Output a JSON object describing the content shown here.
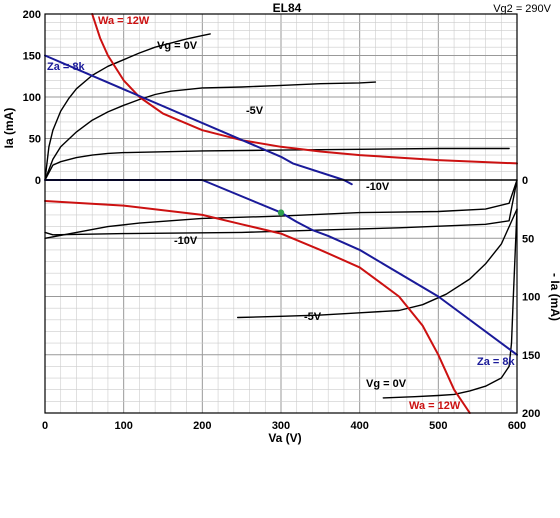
{
  "chart_data": {
    "type": "line",
    "title": "EL84",
    "subtitle": "Vg2 = 290V",
    "xlabel": "Va (V)",
    "ylabel_left": "Ia (mA)",
    "ylabel_right": "- Ia (mA)",
    "xlim": [
      0,
      600
    ],
    "x_ticks": [
      "0",
      "100",
      "200",
      "300",
      "400",
      "500",
      "600"
    ],
    "upper_ylim": [
      0,
      200
    ],
    "upper_y_ticks": [
      "0",
      "50",
      "100",
      "150",
      "200"
    ],
    "lower_ylim": [
      0,
      200
    ],
    "lower_y_ticks": [
      "0",
      "50",
      "100",
      "150",
      "200"
    ],
    "grid": true,
    "colors": {
      "plate_curves": "#000000",
      "dissipation": "#cc1111",
      "load_line": "#1a1a99",
      "operating_point": "#2e9e4f",
      "grid_minor": "#cccccc",
      "grid_major": "#999999"
    },
    "upper": {
      "curves": [
        {
          "label": "Vg = 0V",
          "points": [
            [
              0,
              0
            ],
            [
              5,
              40
            ],
            [
              10,
              60
            ],
            [
              20,
              83
            ],
            [
              30,
              98
            ],
            [
              40,
              110
            ],
            [
              60,
              126
            ],
            [
              80,
              137
            ],
            [
              100,
              145
            ],
            [
              120,
              153
            ],
            [
              140,
              160
            ],
            [
              160,
              165
            ],
            [
              180,
              170
            ],
            [
              200,
              174
            ],
            [
              210,
              176
            ]
          ]
        },
        {
          "label": "-5V",
          "points": [
            [
              0,
              0
            ],
            [
              10,
              25
            ],
            [
              20,
              40
            ],
            [
              40,
              58
            ],
            [
              60,
              72
            ],
            [
              80,
              82
            ],
            [
              100,
              90
            ],
            [
              120,
              97
            ],
            [
              140,
              103
            ],
            [
              160,
              107
            ],
            [
              200,
              111
            ],
            [
              250,
              112
            ],
            [
              300,
              114
            ],
            [
              350,
              116
            ],
            [
              400,
              117
            ],
            [
              420,
              118
            ]
          ]
        },
        {
          "label": "-10V",
          "points": [
            [
              0,
              0
            ],
            [
              10,
              18
            ],
            [
              20,
              22
            ],
            [
              40,
              27
            ],
            [
              60,
              30
            ],
            [
              80,
              32
            ],
            [
              100,
              33
            ],
            [
              200,
              35
            ],
            [
              300,
              36
            ],
            [
              400,
              37
            ],
            [
              500,
              38
            ],
            [
              590,
              38
            ]
          ]
        }
      ],
      "dissipation": {
        "label": "Wa = 12W",
        "points": [
          [
            60,
            200
          ],
          [
            70,
            171
          ],
          [
            80,
            150
          ],
          [
            100,
            120
          ],
          [
            120,
            100
          ],
          [
            150,
            80
          ],
          [
            200,
            60
          ],
          [
            250,
            48
          ],
          [
            300,
            40
          ],
          [
            350,
            34.3
          ],
          [
            400,
            30
          ],
          [
            500,
            24
          ],
          [
            600,
            20
          ]
        ]
      },
      "load_line": {
        "label": "Za = 8k",
        "points": [
          [
            0,
            150
          ],
          [
            300,
            28
          ],
          [
            315,
            20
          ],
          [
            380,
            0
          ],
          [
            390,
            -5
          ]
        ]
      }
    },
    "lower": {
      "curves": [
        {
          "label": "-10V",
          "points": [
            [
              0,
              50
            ],
            [
              40,
              45
            ],
            [
              80,
              40
            ],
            [
              120,
              37
            ],
            [
              200,
              33
            ],
            [
              300,
              31
            ],
            [
              400,
              28
            ],
            [
              500,
              27
            ],
            [
              560,
              25
            ],
            [
              590,
              20
            ],
            [
              600,
              0
            ]
          ]
        },
        {
          "label": "-10V",
          "points": [
            [
              0,
              45
            ],
            [
              10,
              47
            ],
            [
              100,
              46
            ],
            [
              250,
              45
            ],
            [
              350,
              43
            ],
            [
              450,
              41
            ],
            [
              560,
              38
            ],
            [
              590,
              35
            ],
            [
              600,
              0
            ]
          ]
        },
        {
          "label": "-5V",
          "points": [
            [
              600,
              25
            ],
            [
              580,
              55
            ],
            [
              560,
              72
            ],
            [
              540,
              85
            ],
            [
              510,
              98
            ],
            [
              480,
              107
            ],
            [
              450,
              112
            ],
            [
              400,
              114
            ],
            [
              350,
              116
            ],
            [
              300,
              117
            ],
            [
              245,
              118
            ]
          ]
        },
        {
          "label": "Vg = 0V",
          "points": [
            [
              600,
              25
            ],
            [
              595,
              105
            ],
            [
              593,
              140
            ],
            [
              590,
              160
            ],
            [
              580,
              170
            ],
            [
              560,
              177
            ],
            [
              540,
              181
            ],
            [
              520,
              184
            ],
            [
              500,
              185
            ],
            [
              470,
              186
            ],
            [
              430,
              187
            ]
          ]
        }
      ],
      "dissipation": {
        "label": "Wa = 12W",
        "points": [
          [
            0,
            18
          ],
          [
            100,
            22
          ],
          [
            200,
            30
          ],
          [
            250,
            38
          ],
          [
            300,
            46
          ],
          [
            350,
            60
          ],
          [
            400,
            75
          ],
          [
            450,
            100
          ],
          [
            480,
            125
          ],
          [
            500,
            150
          ],
          [
            520,
            180
          ],
          [
            540,
            200
          ]
        ]
      },
      "load_line": {
        "label": "Za = 8k",
        "points": [
          [
            0,
            0
          ],
          [
            200,
            0
          ],
          [
            300,
            28
          ],
          [
            320,
            36
          ],
          [
            340,
            43
          ],
          [
            360,
            48
          ],
          [
            400,
            60
          ],
          [
            500,
            100
          ],
          [
            600,
            150
          ]
        ]
      },
      "operating_point": {
        "x": 300,
        "y": 28
      }
    },
    "annotations": [
      "Wa = 12W",
      "Vg = 0V",
      "Za = 8k",
      "-5V",
      "-10V",
      "-10V",
      "-5V",
      "Za = 8k",
      "Vg = 0V",
      "Wa = 12W"
    ]
  }
}
